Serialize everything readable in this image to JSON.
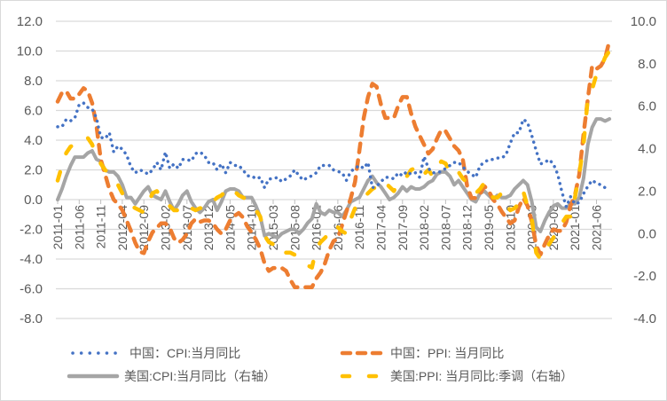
{
  "chart_data": {
    "type": "line",
    "title": "",
    "left_axis": {
      "ylim": [
        -8,
        12
      ],
      "step": 2,
      "tick_labels": [
        "12.0",
        "10.0",
        "8.0",
        "6.0",
        "4.0",
        "2.0",
        "0.0",
        "-2.0",
        "-4.0",
        "-6.0",
        "-8.0"
      ]
    },
    "right_axis": {
      "ylim": [
        -4,
        10
      ],
      "step": 2,
      "tick_labels": [
        "10.0",
        "8.0",
        "6.0",
        "4.0",
        "2.0",
        "0.0",
        "-2.0",
        "-4.0"
      ]
    },
    "grid": "horizontal",
    "legend_position": "bottom",
    "categories": [
      "2011-01",
      "2011-02",
      "2011-03",
      "2011-04",
      "2011-05",
      "2011-06",
      "2011-07",
      "2011-08",
      "2011-09",
      "2011-10",
      "2011-11",
      "2011-12",
      "2012-01",
      "2012-02",
      "2012-03",
      "2012-04",
      "2012-05",
      "2012-06",
      "2012-07",
      "2012-08",
      "2012-09",
      "2012-10",
      "2012-11",
      "2012-12",
      "2013-01",
      "2013-02",
      "2013-03",
      "2013-04",
      "2013-05",
      "2013-06",
      "2013-07",
      "2013-08",
      "2013-09",
      "2013-10",
      "2013-11",
      "2013-12",
      "2014-01",
      "2014-02",
      "2014-03",
      "2014-04",
      "2014-05",
      "2014-06",
      "2014-07",
      "2014-08",
      "2014-09",
      "2014-10",
      "2014-11",
      "2014-12",
      "2015-01",
      "2015-02",
      "2015-03",
      "2015-04",
      "2015-05",
      "2015-06",
      "2015-07",
      "2015-08",
      "2015-09",
      "2015-10",
      "2015-11",
      "2015-12",
      "2016-01",
      "2016-02",
      "2016-03",
      "2016-04",
      "2016-05",
      "2016-06",
      "2016-07",
      "2016-08",
      "2016-09",
      "2016-10",
      "2016-11",
      "2016-12",
      "2017-01",
      "2017-02",
      "2017-03",
      "2017-04",
      "2017-05",
      "2017-06",
      "2017-07",
      "2017-08",
      "2017-09",
      "2017-10",
      "2017-11",
      "2017-12",
      "2018-01",
      "2018-02",
      "2018-03",
      "2018-04",
      "2018-05",
      "2018-06",
      "2018-07",
      "2018-08",
      "2018-09",
      "2018-10",
      "2018-11",
      "2018-12",
      "2019-01",
      "2019-02",
      "2019-03",
      "2019-04",
      "2019-05",
      "2019-06",
      "2019-07",
      "2019-08",
      "2019-09",
      "2019-10",
      "2019-11",
      "2019-12",
      "2020-01",
      "2020-02",
      "2020-03",
      "2020-04",
      "2020-05",
      "2020-06",
      "2020-07",
      "2020-08",
      "2020-09",
      "2020-10",
      "2020-11",
      "2020-12",
      "2021-01",
      "2021-02",
      "2021-03",
      "2021-04",
      "2021-05",
      "2021-06",
      "2021-07",
      "2021-08",
      "2021-09"
    ],
    "x_tick_labels": [
      "2011-01",
      "2011-06",
      "2011-11",
      "2012-04",
      "2012-09",
      "2013-02",
      "2013-07",
      "2013-12",
      "2014-05",
      "2014-10",
      "2015-03",
      "2015-08",
      "2016-01",
      "2016-06",
      "2016-11",
      "2017-04",
      "2017-09",
      "2018-02",
      "2018-07",
      "2018-12",
      "2019-05",
      "2019-10",
      "2020-03",
      "2020-08",
      "2021-01",
      "2021-06"
    ],
    "series": [
      {
        "name": "中国：CPI:当月同比",
        "axis": "left",
        "color": "#4472c4",
        "style": "dotted",
        "values": [
          4.9,
          4.9,
          5.4,
          5.3,
          5.5,
          6.4,
          6.5,
          6.2,
          6.1,
          5.5,
          4.2,
          4.1,
          4.5,
          3.2,
          3.6,
          3.4,
          3.0,
          2.2,
          1.8,
          2.0,
          1.9,
          1.7,
          2.0,
          2.5,
          2.0,
          3.2,
          2.1,
          2.4,
          2.1,
          2.7,
          2.7,
          2.6,
          3.1,
          3.2,
          3.0,
          2.5,
          2.5,
          2.0,
          2.4,
          1.8,
          2.5,
          2.3,
          2.3,
          2.0,
          1.6,
          1.6,
          1.4,
          1.5,
          0.8,
          1.4,
          1.4,
          1.5,
          1.2,
          1.4,
          1.6,
          2.0,
          1.6,
          1.3,
          1.5,
          1.6,
          1.8,
          2.3,
          2.3,
          2.3,
          2.0,
          1.9,
          1.8,
          1.3,
          1.9,
          2.1,
          2.3,
          2.1,
          2.5,
          0.8,
          0.9,
          1.2,
          1.5,
          1.5,
          1.4,
          1.8,
          1.6,
          1.9,
          1.7,
          1.8,
          1.5,
          2.9,
          2.1,
          1.8,
          1.8,
          1.9,
          2.1,
          2.3,
          2.5,
          2.5,
          2.2,
          1.9,
          1.7,
          1.5,
          2.3,
          2.5,
          2.7,
          2.7,
          2.8,
          2.8,
          3.0,
          3.8,
          4.5,
          4.5,
          5.4,
          5.2,
          4.3,
          3.3,
          2.4,
          2.5,
          2.7,
          2.4,
          1.7,
          0.5,
          -0.5,
          0.2,
          -0.3,
          -0.2,
          0.4,
          0.9,
          1.3,
          1.1,
          1.0,
          0.8,
          0.7
        ]
      },
      {
        "name": "中国：PPI: 当月同比",
        "axis": "left",
        "color": "#ed7d31",
        "style": "dashed",
        "values": [
          6.6,
          7.2,
          7.3,
          6.8,
          6.8,
          7.1,
          7.5,
          7.3,
          6.5,
          5.0,
          2.7,
          1.7,
          0.7,
          0.0,
          -0.3,
          -0.7,
          -1.4,
          -2.1,
          -2.9,
          -3.5,
          -3.6,
          -2.8,
          -2.2,
          -1.9,
          -1.6,
          -1.6,
          -1.9,
          -2.6,
          -2.9,
          -2.7,
          -2.3,
          -1.6,
          -1.3,
          -1.5,
          -1.4,
          -1.4,
          -1.6,
          -2.0,
          -2.3,
          -2.0,
          -1.4,
          -1.1,
          -0.9,
          -1.2,
          -1.8,
          -2.2,
          -2.7,
          -3.3,
          -4.3,
          -4.8,
          -4.6,
          -4.6,
          -4.6,
          -4.8,
          -5.4,
          -5.9,
          -5.9,
          -5.9,
          -5.9,
          -5.9,
          -5.3,
          -4.9,
          -4.3,
          -3.4,
          -2.8,
          -2.6,
          -1.7,
          -0.8,
          0.1,
          1.2,
          3.3,
          5.5,
          6.9,
          7.8,
          7.6,
          6.4,
          5.5,
          5.5,
          5.5,
          6.3,
          6.9,
          6.9,
          5.8,
          4.9,
          4.3,
          3.7,
          3.1,
          3.4,
          4.1,
          4.7,
          4.6,
          4.1,
          3.6,
          3.3,
          2.7,
          0.9,
          0.1,
          0.1,
          0.4,
          0.9,
          0.6,
          0.0,
          -0.3,
          -0.8,
          -1.2,
          -1.6,
          -1.4,
          -0.5,
          0.1,
          -0.4,
          -1.5,
          -3.1,
          -3.7,
          -3.0,
          -2.4,
          -2.0,
          -2.1,
          -2.1,
          -1.5,
          -0.4,
          0.3,
          1.7,
          4.4,
          6.8,
          9.0,
          8.8,
          9.0,
          9.5,
          10.7
        ]
      },
      {
        "name": "美国:CPI:当月同比（右轴）",
        "axis": "right",
        "color": "#a5a5a5",
        "style": "solid",
        "values": [
          1.6,
          2.1,
          2.7,
          3.2,
          3.6,
          3.6,
          3.6,
          3.8,
          3.9,
          3.5,
          3.4,
          3.0,
          2.9,
          2.9,
          2.7,
          2.3,
          1.7,
          1.7,
          1.4,
          1.7,
          2.0,
          2.2,
          1.8,
          1.7,
          1.6,
          2.0,
          1.5,
          1.1,
          1.4,
          1.8,
          2.0,
          1.5,
          1.2,
          1.0,
          1.2,
          1.5,
          1.6,
          1.1,
          1.5,
          2.0,
          2.1,
          2.1,
          2.0,
          1.7,
          1.7,
          1.7,
          1.3,
          0.8,
          -0.1,
          0.0,
          -0.1,
          -0.2,
          0.0,
          0.1,
          0.2,
          0.2,
          0.0,
          0.2,
          0.5,
          0.7,
          1.4,
          1.0,
          0.9,
          1.1,
          1.0,
          1.0,
          0.8,
          1.1,
          1.5,
          1.6,
          1.7,
          2.1,
          2.5,
          2.7,
          2.4,
          2.2,
          1.9,
          1.6,
          1.7,
          1.9,
          2.2,
          2.0,
          2.2,
          2.1,
          2.1,
          2.2,
          2.4,
          2.5,
          2.8,
          2.9,
          2.9,
          2.7,
          2.3,
          2.5,
          2.2,
          1.9,
          1.6,
          1.5,
          1.9,
          2.0,
          1.8,
          1.6,
          1.8,
          1.7,
          1.7,
          1.8,
          2.1,
          2.3,
          2.5,
          2.3,
          1.5,
          0.3,
          0.1,
          0.6,
          1.0,
          1.3,
          1.4,
          1.2,
          1.2,
          1.4,
          1.4,
          1.7,
          2.6,
          4.2,
          5.0,
          5.4,
          5.4,
          5.3,
          5.4
        ]
      },
      {
        "name": "美国:PPI: 当月同比:季调（右轴）",
        "axis": "right",
        "color": "#ffc000",
        "style": "longdash",
        "values": [
          2.5,
          3.2,
          3.8,
          4.1,
          4.2,
          4.3,
          4.5,
          4.5,
          4.2,
          3.6,
          3.3,
          3.0,
          2.8,
          2.6,
          2.3,
          1.9,
          1.5,
          1.3,
          1.2,
          1.1,
          1.0,
          1.4,
          1.9,
          2.0,
          1.7,
          1.6,
          1.3,
          1.1,
          1.1,
          1.3,
          1.4,
          1.2,
          1.1,
          1.2,
          1.2,
          1.5,
          1.5,
          1.7,
          1.8,
          2.0,
          2.2,
          2.0,
          1.8,
          1.7,
          1.6,
          1.4,
          1.1,
          0.8,
          -0.1,
          -0.4,
          -0.5,
          -0.9,
          -0.8,
          -0.9,
          -0.9,
          -1.0,
          -1.3,
          -1.4,
          -1.5,
          -1.6,
          -0.7,
          -0.4,
          -0.2,
          0.0,
          -0.1,
          0.3,
          0.1,
          0.0,
          0.7,
          1.2,
          1.4,
          1.7,
          1.9,
          2.1,
          2.2,
          2.5,
          2.4,
          2.2,
          2.0,
          2.4,
          2.6,
          2.7,
          3.0,
          3.1,
          2.7,
          2.8,
          3.0,
          2.7,
          3.1,
          3.4,
          3.3,
          2.9,
          2.7,
          2.9,
          2.6,
          2.4,
          2.1,
          1.9,
          2.1,
          2.4,
          2.0,
          1.7,
          1.7,
          1.9,
          1.4,
          1.1,
          1.2,
          1.4,
          2.0,
          1.3,
          0.7,
          -0.9,
          -1.2,
          -0.8,
          -0.5,
          -0.2,
          0.3,
          0.5,
          0.8,
          0.8,
          1.7,
          2.8,
          4.2,
          6.4,
          6.8,
          7.5,
          7.8,
          8.3,
          8.6
        ]
      }
    ]
  }
}
